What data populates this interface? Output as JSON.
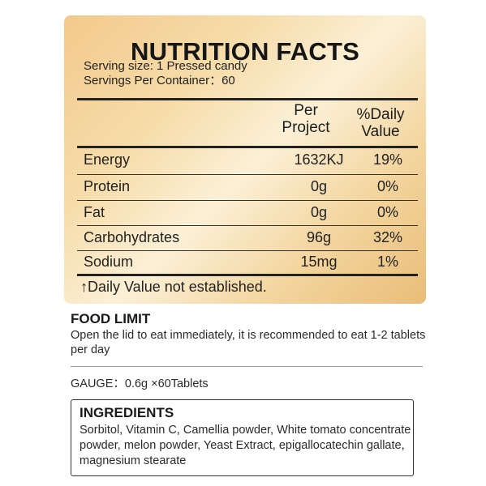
{
  "label": {
    "title": "NUTRITION FACTS",
    "serving_size": "Serving size: 1 Pressed candy",
    "servings_per_container": "Servings Per Container：60",
    "col_per_project_1": "Per",
    "col_per_project_2": "Project",
    "col_daily_value_1": "%Daily",
    "col_daily_value_2": "Value",
    "rows": [
      {
        "name": "Energy",
        "per_project": "1632KJ",
        "daily_value": "19%"
      },
      {
        "name": "Protein",
        "per_project": "0g",
        "daily_value": "0%"
      },
      {
        "name": "Fat",
        "per_project": "0g",
        "daily_value": "0%"
      },
      {
        "name": "Carbohydrates",
        "per_project": "96g",
        "daily_value": "32%"
      },
      {
        "name": "Sodium",
        "per_project": "15mg",
        "daily_value": "1%"
      }
    ],
    "footnote": "↑Daily Value not established."
  },
  "food_limit": {
    "title": "FOOD LIMIT",
    "text": "Open the lid to eat immediately, it is recommended to eat 1-2 tablets per day"
  },
  "gauge": "GAUGE：0.6g ×60Tablets",
  "ingredients": {
    "title": "INGREDIENTS",
    "text": "Sorbitol, Vitamin C, Camellia powder, White tomato concentrate powder, melon powder, Yeast Extract, epigallocatechin gallate, magnesium stearate"
  },
  "colors": {
    "panel_gold": "#f6dca9",
    "text_dark": "#1a1a1a"
  }
}
